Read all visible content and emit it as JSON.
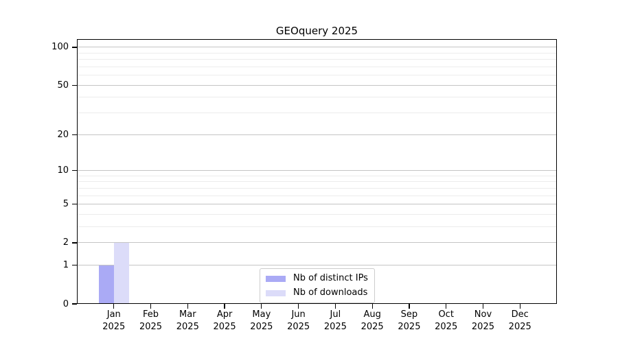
{
  "title": "GEOquery 2025",
  "legend": {
    "items": [
      {
        "label": "Nb of distinct IPs",
        "color": "#aaaaf5"
      },
      {
        "label": "Nb of downloads",
        "color": "#dcdcf9"
      }
    ]
  },
  "chart_data": {
    "type": "bar",
    "title": "GEOquery 2025",
    "categories": [
      "Jan",
      "Feb",
      "Mar",
      "Apr",
      "May",
      "Jun",
      "Jul",
      "Aug",
      "Sep",
      "Oct",
      "Nov",
      "Dec"
    ],
    "year": "2025",
    "series": [
      {
        "name": "Nb of distinct IPs",
        "color": "#aaaaf5",
        "values": [
          1,
          0,
          0,
          0,
          0,
          0,
          0,
          0,
          0,
          0,
          0,
          0
        ]
      },
      {
        "name": "Nb of downloads",
        "color": "#dcdcf9",
        "values": [
          2,
          0,
          0,
          0,
          0,
          0,
          0,
          0,
          0,
          0,
          0,
          0
        ]
      }
    ],
    "xlabel": "",
    "ylabel": "",
    "yscale": "log1p",
    "ylim": [
      0,
      116
    ],
    "y_major_ticks": [
      0,
      1,
      2,
      5,
      10,
      20,
      50,
      100
    ],
    "y_minor_ticks": [
      3,
      4,
      6,
      7,
      8,
      9,
      30,
      40,
      60,
      70,
      80,
      90
    ],
    "grid": true,
    "legend_position": "lower center"
  }
}
